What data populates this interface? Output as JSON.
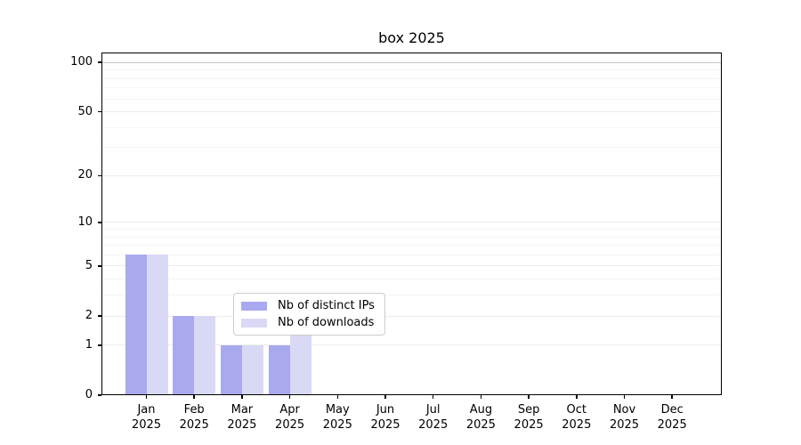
{
  "figure": {
    "title": "box 2025"
  },
  "chart_data": {
    "type": "bar",
    "title": "box 2025",
    "categories": [
      "Jan 2025",
      "Feb 2025",
      "Mar 2025",
      "Apr 2025",
      "May 2025",
      "Jun 2025",
      "Jul 2025",
      "Aug 2025",
      "Sep 2025",
      "Oct 2025",
      "Nov 2025",
      "Dec 2025"
    ],
    "x_tick_month_labels": [
      "Jan",
      "Feb",
      "Mar",
      "Apr",
      "May",
      "Jun",
      "Jul",
      "Aug",
      "Sep",
      "Oct",
      "Nov",
      "Dec"
    ],
    "x_tick_year_label": "2025",
    "series": [
      {
        "name": "Nb of distinct IPs",
        "values": [
          6,
          2,
          1,
          1,
          0,
          0,
          0,
          0,
          0,
          0,
          0,
          0
        ],
        "color": "#a9a9f0"
      },
      {
        "name": "Nb of downloads",
        "values": [
          6,
          2,
          1,
          2,
          0,
          0,
          0,
          0,
          0,
          0,
          0,
          0
        ],
        "color": "#d9d9f5"
      }
    ],
    "y_scale": "log1p",
    "y_ticks": [
      0,
      1,
      2,
      5,
      10,
      20,
      50,
      100
    ],
    "y_minor_gridlines": [
      3,
      4,
      6,
      7,
      8,
      9,
      30,
      40,
      60,
      70,
      80,
      90
    ],
    "ylim": [
      0,
      115
    ],
    "grid": "horizontal",
    "legend_position": "lower center"
  },
  "colors": {
    "bar_distinct_ips": "#a9a9f0",
    "bar_downloads": "#d9d9f5",
    "grid_minor": "#f5f5f5",
    "grid_major": "#ececec",
    "grid_100": "#c9c9c9",
    "axis": "#000000",
    "legend_border": "#cccccc",
    "background": "#ffffff"
  }
}
